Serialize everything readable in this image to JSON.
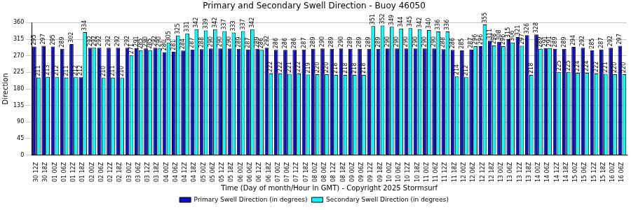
{
  "chart_data": {
    "type": "bar",
    "title": "Primary and Secondary Swell Direction - Buoy 46050",
    "x_label": "Time (Day of month/Hour in GMT) - Copyright 2025 Stormsurf",
    "y_label": "Direction",
    "categories": [
      "30 12Z",
      "30 18Z",
      "01 00Z",
      "01 06Z",
      "01 12Z",
      "01 18Z",
      "02 00Z",
      "02 06Z",
      "02 12Z",
      "02 18Z",
      "03 00Z",
      "03 06Z",
      "03 12Z",
      "03 18Z",
      "04 00Z",
      "04 06Z",
      "04 12Z",
      "04 18Z",
      "05 00Z",
      "05 06Z",
      "05 12Z",
      "05 18Z",
      "06 00Z",
      "06 06Z",
      "06 12Z",
      "06 18Z",
      "07 00Z",
      "07 06Z",
      "07 12Z",
      "07 18Z",
      "08 00Z",
      "08 06Z",
      "08 12Z",
      "08 18Z",
      "09 00Z",
      "09 06Z",
      "09 12Z",
      "09 18Z",
      "10 00Z",
      "10 06Z",
      "10 12Z",
      "10 18Z",
      "11 00Z",
      "11 06Z",
      "11 12Z",
      "11 18Z",
      "12 00Z",
      "12 06Z",
      "12 12Z",
      "12 18Z",
      "13 00Z",
      "13 06Z",
      "13 12Z",
      "13 18Z",
      "14 00Z",
      "14 06Z",
      "14 12Z",
      "14 18Z",
      "15 00Z",
      "15 06Z",
      "15 12Z",
      "15 18Z",
      "16 00Z",
      "16 06Z"
    ],
    "series": [
      {
        "name": "Primary Swell Direction (in degrees)",
        "color": "#1010c0",
        "values": [
          295,
          297,
          295,
          289,
          302,
          212,
          292,
          292,
          292,
          292,
          292,
          291,
          290,
          292,
          280,
          281,
          284,
          287,
          288,
          290,
          290,
          290,
          289,
          287,
          289,
          292,
          286,
          286,
          286,
          287,
          289,
          290,
          289,
          290,
          289,
          289,
          289,
          289,
          290,
          290,
          290,
          290,
          290,
          290,
          288,
          286,
          285,
          287,
          296,
          311,
          308,
          315,
          321,
          326,
          328,
          291,
          289,
          289,
          294,
          292,
          285,
          287,
          292,
          297
        ]
      },
      {
        "name": "Secondary Swell Direction (in degrees)",
        "color": "#00ffff",
        "values": [
          211,
          213,
          212,
          211,
          212,
          334,
          292,
          210,
          211,
          210,
          271,
          285,
          285,
          290,
          305,
          325,
          331,
          342,
          339,
          342,
          337,
          333,
          337,
          342,
          286,
          222,
          222,
          221,
          222,
          219,
          220,
          220,
          218,
          218,
          218,
          218,
          351,
          352,
          349,
          344,
          345,
          342,
          340,
          336,
          336,
          214,
          212,
          296,
          355,
          298,
          296,
          306,
          297,
          218,
          289,
          291,
          225,
          225,
          224,
          224,
          222,
          221,
          220,
          220
        ]
      }
    ],
    "ylim": [
      0,
      360
    ],
    "yticks": [
      0,
      45,
      90,
      135,
      180,
      225,
      270,
      315,
      360
    ],
    "grid": true,
    "legend": "bottom",
    "data_labels": true
  }
}
